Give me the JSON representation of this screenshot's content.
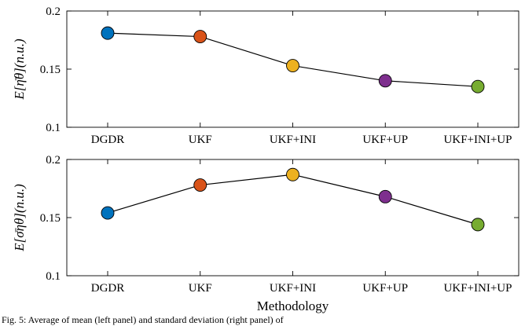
{
  "chart_data": [
    {
      "type": "line",
      "categories": [
        "DGDR",
        "UKF",
        "UKF+INI",
        "UKF+UP",
        "UKF+INI+UP"
      ],
      "values": [
        0.181,
        0.178,
        0.153,
        0.14,
        0.135
      ],
      "point_colors": [
        "#0072BD",
        "#D95319",
        "#EDB120",
        "#7E2F8E",
        "#77AC30"
      ],
      "ylabel": "E[η̄θ](n.u.)",
      "xlabel": "",
      "ylim": [
        0.1,
        0.2
      ],
      "yticks": [
        "0.1",
        "0.15",
        "0.2"
      ],
      "grid": false
    },
    {
      "type": "line",
      "categories": [
        "DGDR",
        "UKF",
        "UKF+INI",
        "UKF+UP",
        "UKF+INI+UP"
      ],
      "values": [
        0.154,
        0.178,
        0.187,
        0.168,
        0.144
      ],
      "point_colors": [
        "#0072BD",
        "#D95319",
        "#EDB120",
        "#7E2F8E",
        "#77AC30"
      ],
      "ylabel": "E[σ̄ηθ](n.u.)",
      "xlabel": "Methodology",
      "ylim": [
        0.1,
        0.2
      ],
      "yticks": [
        "0.1",
        "0.15",
        "0.2"
      ],
      "grid": false
    }
  ],
  "caption": "Fig. 5: Average of mean (left panel) and standard deviation (right panel) of"
}
